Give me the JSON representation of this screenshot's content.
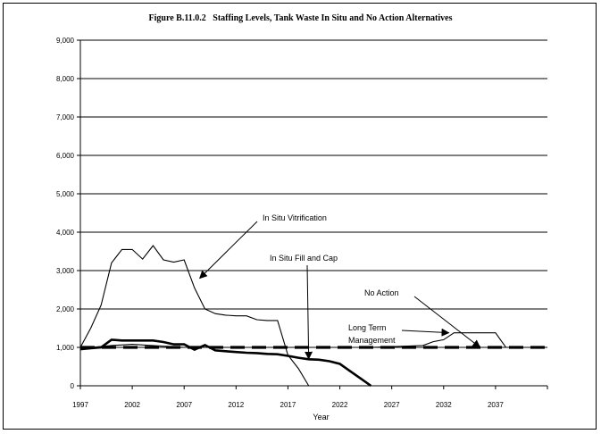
{
  "chart_data": {
    "type": "line",
    "title": "Figure B.11.0.2   Staffing Levels, Tank Waste In Situ and No Action Alternatives",
    "xlabel": "Year",
    "ylabel": "",
    "x_ticks": [
      "1997",
      "2002",
      "2007",
      "2012",
      "2017",
      "2022",
      "2027",
      "2032",
      "2037",
      ""
    ],
    "y_ticks": [
      "0",
      "1,000",
      "2,000",
      "3,000",
      "4,000",
      "5,000",
      "6,000",
      "7,000",
      "8,000",
      "9,000"
    ],
    "xlim": [
      1997,
      2042
    ],
    "ylim": [
      0,
      9000
    ],
    "grid": true,
    "annotations": [
      {
        "label": "In Situ Vitrification",
        "series": "In Situ Vitrification"
      },
      {
        "label": "In Situ Fill and Cap",
        "series": "In Situ Fill and Cap"
      },
      {
        "label": "No Action",
        "series": "No Action"
      },
      {
        "label": "Long Term Management",
        "series": "Long Term Management"
      }
    ],
    "series": [
      {
        "name": "In Situ Vitrification",
        "style": "thin",
        "points": [
          [
            1997,
            1000
          ],
          [
            1998,
            1500
          ],
          [
            1999,
            2100
          ],
          [
            2000,
            3200
          ],
          [
            2001,
            3550
          ],
          [
            2002,
            3550
          ],
          [
            2003,
            3300
          ],
          [
            2004,
            3650
          ],
          [
            2005,
            3280
          ],
          [
            2006,
            3220
          ],
          [
            2007,
            3280
          ],
          [
            2008,
            2550
          ],
          [
            2009,
            2000
          ],
          [
            2010,
            1880
          ],
          [
            2011,
            1840
          ],
          [
            2012,
            1820
          ],
          [
            2013,
            1820
          ],
          [
            2014,
            1720
          ],
          [
            2015,
            1700
          ],
          [
            2016,
            1700
          ],
          [
            2017,
            800
          ],
          [
            2018,
            450
          ],
          [
            2019,
            0
          ]
        ]
      },
      {
        "name": "In Situ Fill and Cap",
        "style": "thick",
        "points": [
          [
            1997,
            950
          ],
          [
            1998,
            980
          ],
          [
            1999,
            1000
          ],
          [
            2000,
            1200
          ],
          [
            2001,
            1180
          ],
          [
            2002,
            1180
          ],
          [
            2003,
            1180
          ],
          [
            2004,
            1180
          ],
          [
            2005,
            1140
          ],
          [
            2006,
            1080
          ],
          [
            2007,
            1080
          ],
          [
            2008,
            940
          ],
          [
            2009,
            1060
          ],
          [
            2010,
            920
          ],
          [
            2011,
            900
          ],
          [
            2012,
            880
          ],
          [
            2013,
            860
          ],
          [
            2014,
            850
          ],
          [
            2015,
            830
          ],
          [
            2016,
            820
          ],
          [
            2017,
            780
          ],
          [
            2018,
            730
          ],
          [
            2019,
            690
          ],
          [
            2020,
            680
          ],
          [
            2021,
            640
          ],
          [
            2022,
            570
          ],
          [
            2023,
            380
          ],
          [
            2024,
            190
          ],
          [
            2025,
            0
          ]
        ]
      },
      {
        "name": "No Action",
        "style": "thin",
        "points": [
          [
            1997,
            1000
          ],
          [
            1998,
            1000
          ],
          [
            2000,
            1050
          ],
          [
            2002,
            1080
          ],
          [
            2005,
            1030
          ],
          [
            2007,
            1000
          ],
          [
            2010,
            1000
          ],
          [
            2015,
            1000
          ],
          [
            2020,
            1000
          ],
          [
            2025,
            1000
          ],
          [
            2030,
            1050
          ],
          [
            2031,
            1150
          ],
          [
            2032,
            1200
          ],
          [
            2033,
            1380
          ],
          [
            2034,
            1380
          ],
          [
            2035,
            1380
          ],
          [
            2036,
            1380
          ],
          [
            2037,
            1380
          ],
          [
            2038,
            1000
          ],
          [
            2042,
            1000
          ]
        ]
      },
      {
        "name": "Long Term Management",
        "style": "dashed",
        "points": [
          [
            1997,
            1000
          ],
          [
            2042,
            1000
          ]
        ]
      }
    ]
  }
}
